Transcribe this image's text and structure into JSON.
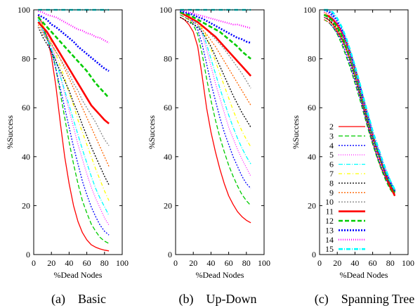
{
  "figure": {
    "panels": [
      "a",
      "b",
      "c"
    ],
    "legend_panel": "c",
    "legend_position": "left-inside"
  },
  "chart_data": [
    {
      "type": "line",
      "caption": "(a)    Basic",
      "xlabel": "%Dead Nodes",
      "ylabel": "%Success",
      "xlim": [
        0,
        100
      ],
      "ylim": [
        0,
        100
      ],
      "xticks": [
        0,
        20,
        40,
        60,
        80,
        100
      ],
      "yticks": [
        0,
        20,
        40,
        60,
        80,
        100
      ],
      "x": [
        5,
        10,
        15,
        20,
        25,
        30,
        35,
        40,
        45,
        50,
        55,
        60,
        65,
        70,
        75,
        80,
        85
      ],
      "series": [
        {
          "name": "2",
          "values": [
            98,
            94,
            89,
            81,
            69,
            54,
            40,
            29,
            20,
            13.5,
            9,
            6,
            4,
            3,
            2.3,
            1.8,
            1.5
          ]
        },
        {
          "name": "3",
          "values": [
            96,
            93,
            89,
            84,
            76,
            66,
            56,
            46,
            37,
            29,
            22,
            17,
            12.5,
            9.5,
            7,
            5.5,
            4.5
          ]
        },
        {
          "name": "4",
          "values": [
            96,
            92,
            88,
            83,
            76,
            68,
            60,
            52,
            44,
            37,
            30,
            24.5,
            19.5,
            15.5,
            12,
            9.5,
            8
          ]
        },
        {
          "name": "5",
          "values": [
            97,
            94,
            90,
            86,
            80,
            73,
            66,
            59,
            52,
            45,
            39,
            33,
            27.5,
            23,
            19,
            15,
            12
          ]
        },
        {
          "name": "6",
          "values": [
            96,
            92,
            88,
            84,
            79,
            73,
            67,
            61,
            55,
            49,
            43,
            37.5,
            32,
            27,
            23,
            19.5,
            16
          ]
        },
        {
          "name": "7",
          "values": [
            97,
            94,
            91,
            87,
            82,
            77,
            72,
            66,
            61,
            55,
            50,
            45,
            40,
            35,
            30.5,
            26,
            22
          ]
        },
        {
          "name": "8",
          "values": [
            93,
            89,
            86,
            83,
            79,
            75,
            71,
            67,
            62,
            58,
            53,
            48.5,
            44,
            40,
            36,
            32,
            28.5
          ]
        },
        {
          "name": "9",
          "values": [
            94,
            91,
            88,
            86,
            83,
            80,
            76,
            72,
            68,
            64,
            60,
            56,
            52,
            48,
            44,
            40,
            36
          ]
        },
        {
          "name": "10",
          "values": [
            93,
            90,
            88,
            86,
            83,
            80,
            77,
            74,
            70,
            67,
            63,
            60,
            57,
            54,
            50.5,
            47,
            44.5
          ]
        },
        {
          "name": "11",
          "values": [
            95,
            93,
            91,
            88,
            85,
            82,
            79,
            76,
            73,
            70,
            67,
            64,
            61,
            59,
            57,
            55,
            53.5
          ]
        },
        {
          "name": "12",
          "values": [
            97,
            95,
            93,
            91,
            89,
            87,
            85,
            83,
            81,
            79,
            77,
            75,
            72.5,
            70,
            68,
            66,
            64
          ]
        },
        {
          "name": "13",
          "values": [
            98,
            97,
            96,
            94,
            93,
            91.5,
            90,
            88.5,
            87,
            85,
            83.5,
            82,
            80.5,
            79,
            77.5,
            76,
            75
          ]
        },
        {
          "name": "14",
          "values": [
            99.5,
            99,
            98,
            97.5,
            97,
            96,
            95,
            94,
            93,
            92,
            91.5,
            90.5,
            90,
            89,
            88.5,
            87.5,
            86.5
          ]
        },
        {
          "name": "15",
          "values": [
            100,
            100,
            100,
            100,
            100,
            100,
            100,
            100,
            100,
            100,
            100,
            100,
            100,
            100,
            100,
            100,
            100
          ]
        }
      ]
    },
    {
      "type": "line",
      "caption": "(b)    Up-Down",
      "xlabel": "%Dead Nodes",
      "ylabel": "%Success",
      "xlim": [
        0,
        100
      ],
      "ylim": [
        0,
        100
      ],
      "xticks": [
        0,
        20,
        40,
        60,
        80,
        100
      ],
      "yticks": [
        0,
        20,
        40,
        60,
        80,
        100
      ],
      "x": [
        5,
        10,
        15,
        20,
        25,
        30,
        35,
        40,
        45,
        50,
        55,
        60,
        65,
        70,
        75,
        80,
        85
      ],
      "series": [
        {
          "name": "2",
          "values": [
            97,
            96,
            94,
            91,
            85,
            73,
            60,
            50,
            42,
            35,
            29,
            24,
            20.5,
            17.5,
            15.5,
            14,
            13
          ]
        },
        {
          "name": "3",
          "values": [
            98,
            97,
            96,
            94,
            90,
            82,
            72,
            63,
            55,
            48,
            42,
            36.5,
            32,
            28,
            24.5,
            22,
            20
          ]
        },
        {
          "name": "4",
          "values": [
            99,
            98,
            97,
            95,
            92,
            86,
            78,
            70,
            63,
            56,
            50,
            45,
            40,
            36,
            32,
            29,
            27
          ]
        },
        {
          "name": "5",
          "values": [
            99,
            98,
            97,
            96,
            94,
            90,
            84,
            77,
            70,
            64,
            58,
            52,
            47.5,
            43,
            39,
            35.5,
            32
          ]
        },
        {
          "name": "6",
          "values": [
            99,
            98,
            97,
            96,
            94,
            91,
            86,
            80,
            74,
            68,
            62.5,
            57,
            52,
            47.5,
            43.5,
            40,
            37
          ]
        },
        {
          "name": "7",
          "values": [
            99,
            98,
            97.5,
            96.5,
            95,
            92.5,
            89,
            84,
            79,
            74,
            69,
            64,
            59,
            54.5,
            50.5,
            47,
            44
          ]
        },
        {
          "name": "8",
          "values": [
            97,
            96,
            95,
            94,
            93,
            91,
            88,
            85,
            81,
            77,
            73,
            69,
            65,
            61.5,
            58,
            55,
            52
          ]
        },
        {
          "name": "9",
          "values": [
            98,
            97,
            96,
            95,
            94,
            92,
            90,
            87.5,
            85,
            82,
            79,
            76,
            73,
            70,
            67,
            64,
            61
          ]
        },
        {
          "name": "10",
          "values": [
            98,
            97,
            96.5,
            96,
            95,
            93.5,
            92,
            90,
            88,
            86,
            84,
            81.5,
            79,
            76.5,
            74,
            71,
            68
          ]
        },
        {
          "name": "11",
          "values": [
            99,
            98,
            97,
            96,
            95,
            93.5,
            92,
            90.5,
            89,
            87,
            85,
            83,
            81,
            79,
            77,
            75,
            73
          ]
        },
        {
          "name": "12",
          "values": [
            99,
            98.5,
            98,
            97,
            96,
            95,
            94,
            93,
            92,
            91,
            89.5,
            88,
            86.5,
            85,
            83,
            81.5,
            80
          ]
        },
        {
          "name": "13",
          "values": [
            99.5,
            99,
            98.5,
            98,
            97,
            96.5,
            95.5,
            94.5,
            93.5,
            92.5,
            91.5,
            90.5,
            89.5,
            88.5,
            88,
            87,
            86.5
          ]
        },
        {
          "name": "14",
          "values": [
            100,
            99.5,
            99,
            98.5,
            98,
            97.5,
            97,
            96.5,
            96,
            95.5,
            95,
            94.5,
            94,
            94,
            93.5,
            93,
            92.5
          ]
        },
        {
          "name": "15",
          "values": [
            100,
            100,
            100,
            100,
            100,
            100,
            100,
            100,
            100,
            100,
            100,
            100,
            100,
            100,
            100,
            100,
            100
          ]
        }
      ]
    },
    {
      "type": "line",
      "caption": "(c)    Spanning Tree",
      "xlabel": "%Dead Nodes",
      "ylabel": "%Success",
      "xlim": [
        0,
        100
      ],
      "ylim": [
        0,
        100
      ],
      "xticks": [
        0,
        20,
        40,
        60,
        80,
        100
      ],
      "yticks": [
        0,
        20,
        40,
        60,
        80,
        100
      ],
      "x": [
        5,
        10,
        15,
        20,
        25,
        30,
        35,
        40,
        45,
        50,
        55,
        60,
        65,
        70,
        75,
        80,
        85
      ],
      "series": [
        {
          "name": "2",
          "values": [
            97,
            96,
            94,
            91,
            88,
            84,
            79,
            73,
            66,
            59,
            52,
            46,
            40,
            35,
            31,
            27,
            24
          ]
        },
        {
          "name": "3",
          "values": [
            96,
            95,
            93,
            90,
            86,
            81,
            76,
            70,
            64,
            57.5,
            51,
            45,
            39.5,
            34.5,
            30,
            26.5,
            24
          ]
        },
        {
          "name": "4",
          "values": [
            96,
            95,
            93,
            90.5,
            87,
            82,
            77,
            71,
            65,
            58.5,
            52,
            46,
            40.5,
            35.5,
            31,
            27.5,
            24.5
          ]
        },
        {
          "name": "5",
          "values": [
            98,
            97,
            95,
            92,
            88,
            83,
            77.5,
            71.5,
            65.5,
            59,
            53,
            47,
            41.5,
            36.5,
            32,
            28,
            25
          ]
        },
        {
          "name": "6",
          "values": [
            100,
            99,
            97,
            94,
            90,
            85.5,
            80,
            74,
            68,
            61.5,
            55,
            49,
            43.5,
            38.5,
            33.5,
            29.5,
            26
          ]
        },
        {
          "name": "7",
          "values": [
            99,
            98,
            96,
            93,
            89.5,
            85,
            79.5,
            73.5,
            67.5,
            61,
            54.5,
            48.5,
            43,
            38,
            33,
            29,
            25.5
          ]
        },
        {
          "name": "8",
          "values": [
            97,
            96,
            94.5,
            92,
            88.5,
            84,
            78.5,
            72.5,
            66.5,
            60,
            53.5,
            47.5,
            42,
            37,
            32.5,
            28.5,
            25
          ]
        },
        {
          "name": "9",
          "values": [
            96,
            95,
            94,
            91.5,
            88,
            84,
            79,
            73,
            67,
            60.5,
            54,
            48,
            42.5,
            37.5,
            32.5,
            28.5,
            25
          ]
        },
        {
          "name": "10",
          "values": [
            97,
            96.5,
            95,
            92.5,
            89,
            85,
            80,
            74,
            67.5,
            61,
            54.5,
            48.5,
            43,
            38,
            33,
            29,
            25.5
          ]
        },
        {
          "name": "11",
          "values": [
            98,
            97.5,
            96,
            94,
            91,
            87,
            82,
            76,
            69.5,
            62.5,
            55.5,
            49,
            43,
            37.5,
            32.5,
            28,
            24
          ]
        },
        {
          "name": "12",
          "values": [
            98,
            97,
            95.5,
            93,
            89.5,
            85,
            80,
            74,
            67.5,
            61,
            54.5,
            48.5,
            43,
            38,
            33,
            29,
            25.5
          ]
        },
        {
          "name": "13",
          "values": [
            100,
            99.5,
            98,
            95.5,
            92,
            87.5,
            82,
            76,
            69.5,
            62.5,
            56,
            49.5,
            44,
            38.5,
            33.5,
            29.5,
            26
          ]
        },
        {
          "name": "14",
          "values": [
            99,
            98.5,
            97,
            94.5,
            91,
            86.5,
            81,
            75,
            68.5,
            62,
            55.5,
            49.5,
            44,
            39,
            34,
            30,
            26.5
          ]
        },
        {
          "name": "15",
          "values": [
            100,
            100,
            99,
            96.5,
            93,
            88.5,
            83,
            77,
            70.5,
            63.5,
            57,
            50.5,
            45,
            39.5,
            34.5,
            30,
            26.5
          ]
        }
      ]
    }
  ],
  "styles": [
    {
      "name": "2",
      "color": "#ff0000",
      "dash": "",
      "width": 1.3
    },
    {
      "name": "3",
      "color": "#00cc00",
      "dash": "6 3",
      "width": 1.3
    },
    {
      "name": "4",
      "color": "#0000ff",
      "dash": "2 2",
      "width": 1.3
    },
    {
      "name": "5",
      "color": "#ff00ff",
      "dash": "1 2",
      "width": 1.2
    },
    {
      "name": "6",
      "color": "#00ffff",
      "dash": "6 2 1 2",
      "width": 1.3
    },
    {
      "name": "7",
      "color": "#ffff00",
      "dash": "5 3 1 3",
      "width": 1.3
    },
    {
      "name": "8",
      "color": "#000000",
      "dash": "2 2",
      "width": 1.3
    },
    {
      "name": "9",
      "color": "#ff6600",
      "dash": "2 2",
      "width": 1.3
    },
    {
      "name": "10",
      "color": "#888888",
      "dash": "2 2",
      "width": 1.3
    },
    {
      "name": "11",
      "color": "#ff0000",
      "dash": "",
      "width": 2.6
    },
    {
      "name": "12",
      "color": "#00cc00",
      "dash": "6 3",
      "width": 2.6
    },
    {
      "name": "13",
      "color": "#0000ff",
      "dash": "2 2",
      "width": 2.6
    },
    {
      "name": "14",
      "color": "#ff00ff",
      "dash": "1 2",
      "width": 2.4
    },
    {
      "name": "15",
      "color": "#00ffff",
      "dash": "6 2 1 2",
      "width": 2.6
    }
  ]
}
